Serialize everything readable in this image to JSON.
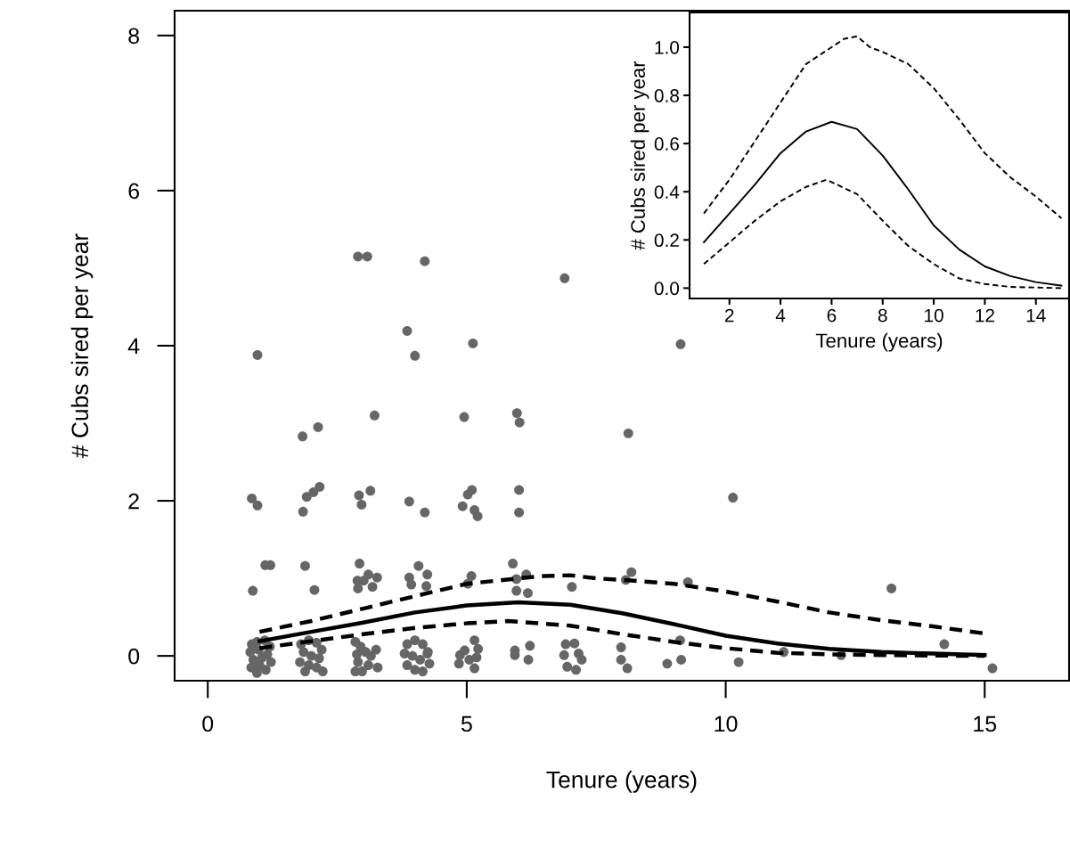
{
  "chart_data": [
    {
      "type": "scatter",
      "xlabel": "Tenure (years)",
      "ylabel": "# Cubs sired per year",
      "xlim": [
        -0.64,
        16.63
      ],
      "ylim": [
        -0.32,
        8.32
      ],
      "xticks": [
        0,
        5,
        10,
        15
      ],
      "yticks": [
        0,
        2,
        4,
        6,
        8
      ],
      "grid": false,
      "series": [
        {
          "color": "#666666",
          "marker": "circle",
          "x": [
            0.96,
            3.85,
            4.0,
            3.22,
            1.83,
            2.13,
            0.85,
            0.96,
            1.91,
            2.04,
            2.16,
            1.84,
            2.92,
            3.14,
            2.97,
            3.89,
            4.19,
            1.11,
            1.21,
            0.87,
            1.88,
            2.06,
            2.93,
            2.89,
            3.1,
            3.27,
            3.01,
            3.18,
            2.9,
            4.07,
            3.89,
            4.24,
            3.93,
            4.22,
            4.19,
            2.9,
            3.08,
            6.89,
            5.12,
            9.13,
            4.95,
            5.97,
            6.02,
            8.12,
            5.1,
            5.02,
            4.92,
            5.15,
            5.21,
            6.01,
            6.01,
            5.09,
            5.02,
            5.89,
            6.15,
            5.96,
            5.96,
            6.18,
            7.03,
            8.18,
            8.07,
            9.27,
            4.87,
            4.96,
            5.15,
            5.22,
            4.85,
            5.15,
            5.05,
            5.19,
            5.93,
            5.93,
            6.22,
            6.19,
            6.91,
            7.08,
            6.88,
            7.16,
            7.22,
            6.94,
            7.11,
            7.98,
            7.98,
            8.1,
            8.87,
            9.12,
            9.14,
            10.14,
            13.2,
            10.25,
            11.12,
            12.23,
            14.22,
            15.15,
            0.85,
            0.95,
            1.1,
            1.2,
            0.82,
            0.98,
            1.15,
            0.88,
            1.05,
            1.22,
            0.84,
            1.0,
            1.12,
            0.95,
            1.8,
            1.95,
            2.1,
            2.2,
            1.85,
            2.0,
            2.15,
            1.78,
            1.95,
            2.1,
            2.22,
            1.88,
            2.85,
            2.95,
            3.05,
            2.88,
            3.15,
            3.25,
            2.9,
            3.1,
            3.28,
            2.85,
            2.98,
            3.85,
            4.0,
            4.15,
            4.25,
            3.8,
            3.95,
            4.1,
            4.28,
            3.85,
            4.0,
            4.15,
            4.24
          ],
          "values": [
            3.88,
            4.19,
            3.87,
            3.1,
            2.83,
            2.95,
            2.03,
            1.94,
            2.05,
            2.11,
            2.18,
            1.86,
            2.07,
            2.13,
            1.95,
            1.99,
            1.85,
            1.17,
            1.17,
            0.84,
            1.16,
            0.85,
            1.19,
            0.97,
            1.05,
            1.01,
            0.97,
            0.89,
            0.87,
            1.16,
            1.01,
            1.05,
            0.92,
            0.9,
            5.09,
            5.15,
            5.15,
            4.87,
            4.03,
            4.02,
            3.08,
            3.13,
            3.01,
            2.87,
            2.14,
            2.08,
            1.93,
            1.88,
            1.8,
            2.14,
            1.85,
            1.03,
            0.93,
            1.19,
            1.05,
            0.99,
            0.84,
            0.81,
            0.89,
            1.08,
            0.98,
            0.95,
            0.01,
            0.07,
            0.2,
            0.09,
            -0.1,
            -0.16,
            -0.05,
            -0.02,
            0.07,
            0.01,
            0.13,
            -0.05,
            0.15,
            0.16,
            0.01,
            0.03,
            -0.05,
            -0.14,
            -0.18,
            0.11,
            -0.05,
            -0.16,
            -0.1,
            0.2,
            -0.05,
            2.04,
            0.87,
            -0.08,
            0.05,
            0.01,
            0.15,
            -0.16,
            0.15,
            0.18,
            0.2,
            0.12,
            0.05,
            0.08,
            0.02,
            -0.05,
            -0.02,
            -0.08,
            -0.15,
            -0.12,
            -0.18,
            -0.22,
            0.15,
            0.2,
            0.17,
            0.08,
            0.05,
            0.0,
            -0.03,
            -0.08,
            -0.12,
            -0.15,
            -0.2,
            -0.2,
            0.18,
            0.12,
            0.05,
            0.02,
            0.0,
            0.08,
            -0.08,
            -0.12,
            -0.15,
            -0.2,
            -0.2,
            0.15,
            0.2,
            0.15,
            0.05,
            0.03,
            0.0,
            -0.05,
            -0.1,
            -0.12,
            -0.18,
            -0.2,
            0.03
          ]
        },
        {
          "type": "line",
          "color": "#000000",
          "line_style": "solid",
          "x": [
            1,
            2,
            3,
            4,
            5,
            6,
            7,
            8,
            9,
            10,
            11,
            12,
            13,
            14,
            15
          ],
          "values": [
            0.19,
            0.31,
            0.43,
            0.56,
            0.65,
            0.69,
            0.66,
            0.55,
            0.41,
            0.26,
            0.16,
            0.09,
            0.05,
            0.03,
            0.01
          ]
        },
        {
          "type": "line",
          "color": "#000000",
          "line_style": "dashed",
          "x": [
            1,
            2,
            3,
            4,
            5,
            6,
            6.5,
            7,
            7.5,
            8,
            9,
            10,
            11,
            12,
            13,
            14,
            15
          ],
          "values": [
            0.31,
            0.45,
            0.61,
            0.77,
            0.93,
            1.0,
            1.03,
            1.04,
            1.0,
            0.98,
            0.93,
            0.83,
            0.7,
            0.56,
            0.46,
            0.38,
            0.29
          ]
        },
        {
          "type": "line",
          "color": "#000000",
          "line_style": "dashed",
          "x": [
            1,
            2,
            3,
            4,
            5,
            5.8,
            7,
            8,
            9,
            10,
            11,
            12,
            13,
            15
          ],
          "values": [
            0.1,
            0.19,
            0.28,
            0.36,
            0.42,
            0.45,
            0.39,
            0.28,
            0.18,
            0.1,
            0.04,
            0.02,
            0.01,
            0
          ]
        }
      ]
    },
    {
      "type": "line",
      "xlabel": "Tenure (years)",
      "ylabel": "# Cubs sired per year",
      "xlim": [
        0.44,
        15.3
      ],
      "ylim": [
        -0.043,
        1.144
      ],
      "xticks": [
        2,
        4,
        6,
        8,
        10,
        12,
        14
      ],
      "yticks": [
        {
          "value": 0,
          "label": "0.0"
        },
        {
          "value": 0.2,
          "label": "0.2"
        },
        {
          "value": 0.4,
          "label": "0.4"
        },
        {
          "value": 0.6,
          "label": "0.6"
        },
        {
          "value": 0.8,
          "label": "0.8"
        },
        {
          "value": 1.0,
          "label": "1.0"
        }
      ],
      "grid": false,
      "series": [
        {
          "color": "#000000",
          "line_style": "solid",
          "x": [
            1,
            2,
            3,
            4,
            5,
            6,
            7,
            8,
            9,
            10,
            11,
            12,
            13,
            14,
            15
          ],
          "values": [
            0.19,
            0.31,
            0.43,
            0.56,
            0.65,
            0.69,
            0.66,
            0.55,
            0.41,
            0.26,
            0.16,
            0.09,
            0.05,
            0.025,
            0.01
          ]
        },
        {
          "color": "#000000",
          "line_style": "dashed",
          "x": [
            1,
            2,
            3,
            4,
            5,
            6,
            6.5,
            7,
            7.5,
            8,
            9,
            10,
            11,
            12,
            13,
            14,
            15
          ],
          "values": [
            0.31,
            0.45,
            0.61,
            0.77,
            0.93,
            1.0,
            1.035,
            1.045,
            1.0,
            0.98,
            0.93,
            0.83,
            0.7,
            0.56,
            0.46,
            0.38,
            0.29
          ]
        },
        {
          "color": "#000000",
          "line_style": "dashed",
          "x": [
            1,
            2,
            3,
            4,
            5,
            5.8,
            7,
            8,
            9,
            10,
            11,
            12,
            13,
            15
          ],
          "values": [
            0.1,
            0.19,
            0.28,
            0.36,
            0.42,
            0.45,
            0.39,
            0.28,
            0.175,
            0.1,
            0.04,
            0.017,
            0.005,
            0
          ]
        }
      ]
    }
  ]
}
